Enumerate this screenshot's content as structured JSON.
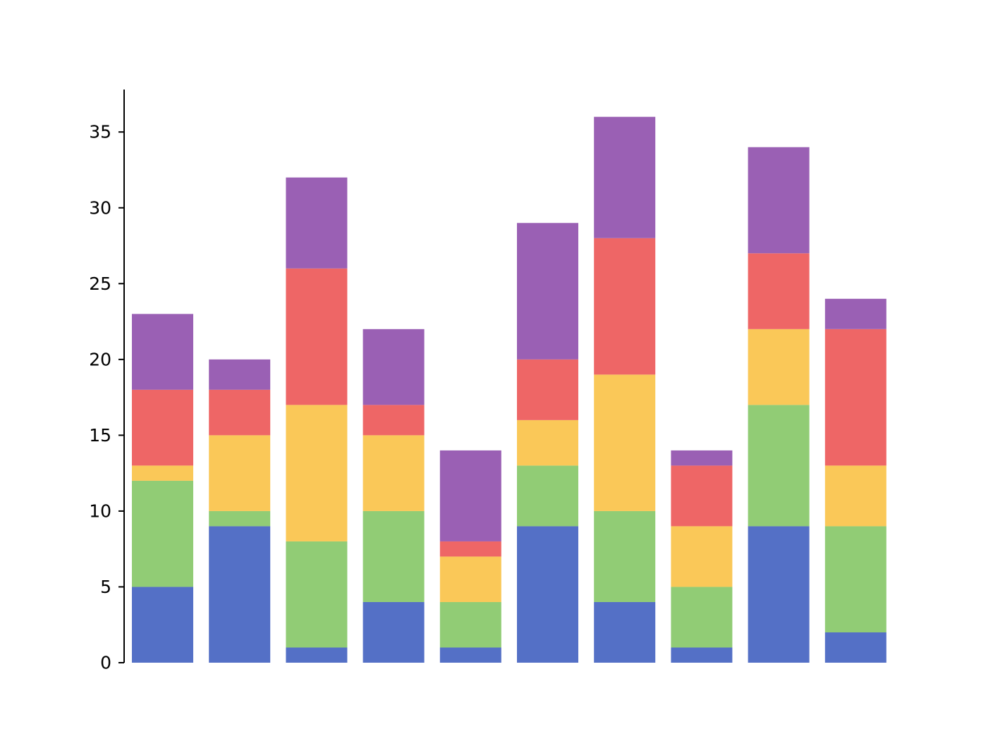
{
  "chart_data": {
    "type": "bar",
    "stacked": true,
    "categories": [
      "",
      "",
      "",
      "",
      "",
      "",
      "",
      "",
      "",
      ""
    ],
    "series": [
      {
        "color": "#5470c6",
        "values": [
          5,
          9,
          1,
          4,
          1,
          9,
          4,
          1,
          9,
          2
        ]
      },
      {
        "color": "#91cc75",
        "values": [
          7,
          1,
          7,
          6,
          3,
          4,
          6,
          4,
          8,
          7
        ]
      },
      {
        "color": "#fac858",
        "values": [
          1,
          5,
          9,
          5,
          3,
          3,
          9,
          4,
          5,
          4
        ]
      },
      {
        "color": "#ee6666",
        "values": [
          5,
          3,
          9,
          2,
          1,
          4,
          9,
          4,
          5,
          9
        ]
      },
      {
        "color": "#9a60b4",
        "values": [
          5,
          2,
          6,
          5,
          6,
          9,
          8,
          1,
          7,
          2
        ]
      }
    ],
    "ylim": [
      0,
      37.8
    ],
    "yticks": [
      0,
      5,
      10,
      15,
      20,
      25,
      30,
      35
    ],
    "grid": false,
    "legend": "none"
  }
}
